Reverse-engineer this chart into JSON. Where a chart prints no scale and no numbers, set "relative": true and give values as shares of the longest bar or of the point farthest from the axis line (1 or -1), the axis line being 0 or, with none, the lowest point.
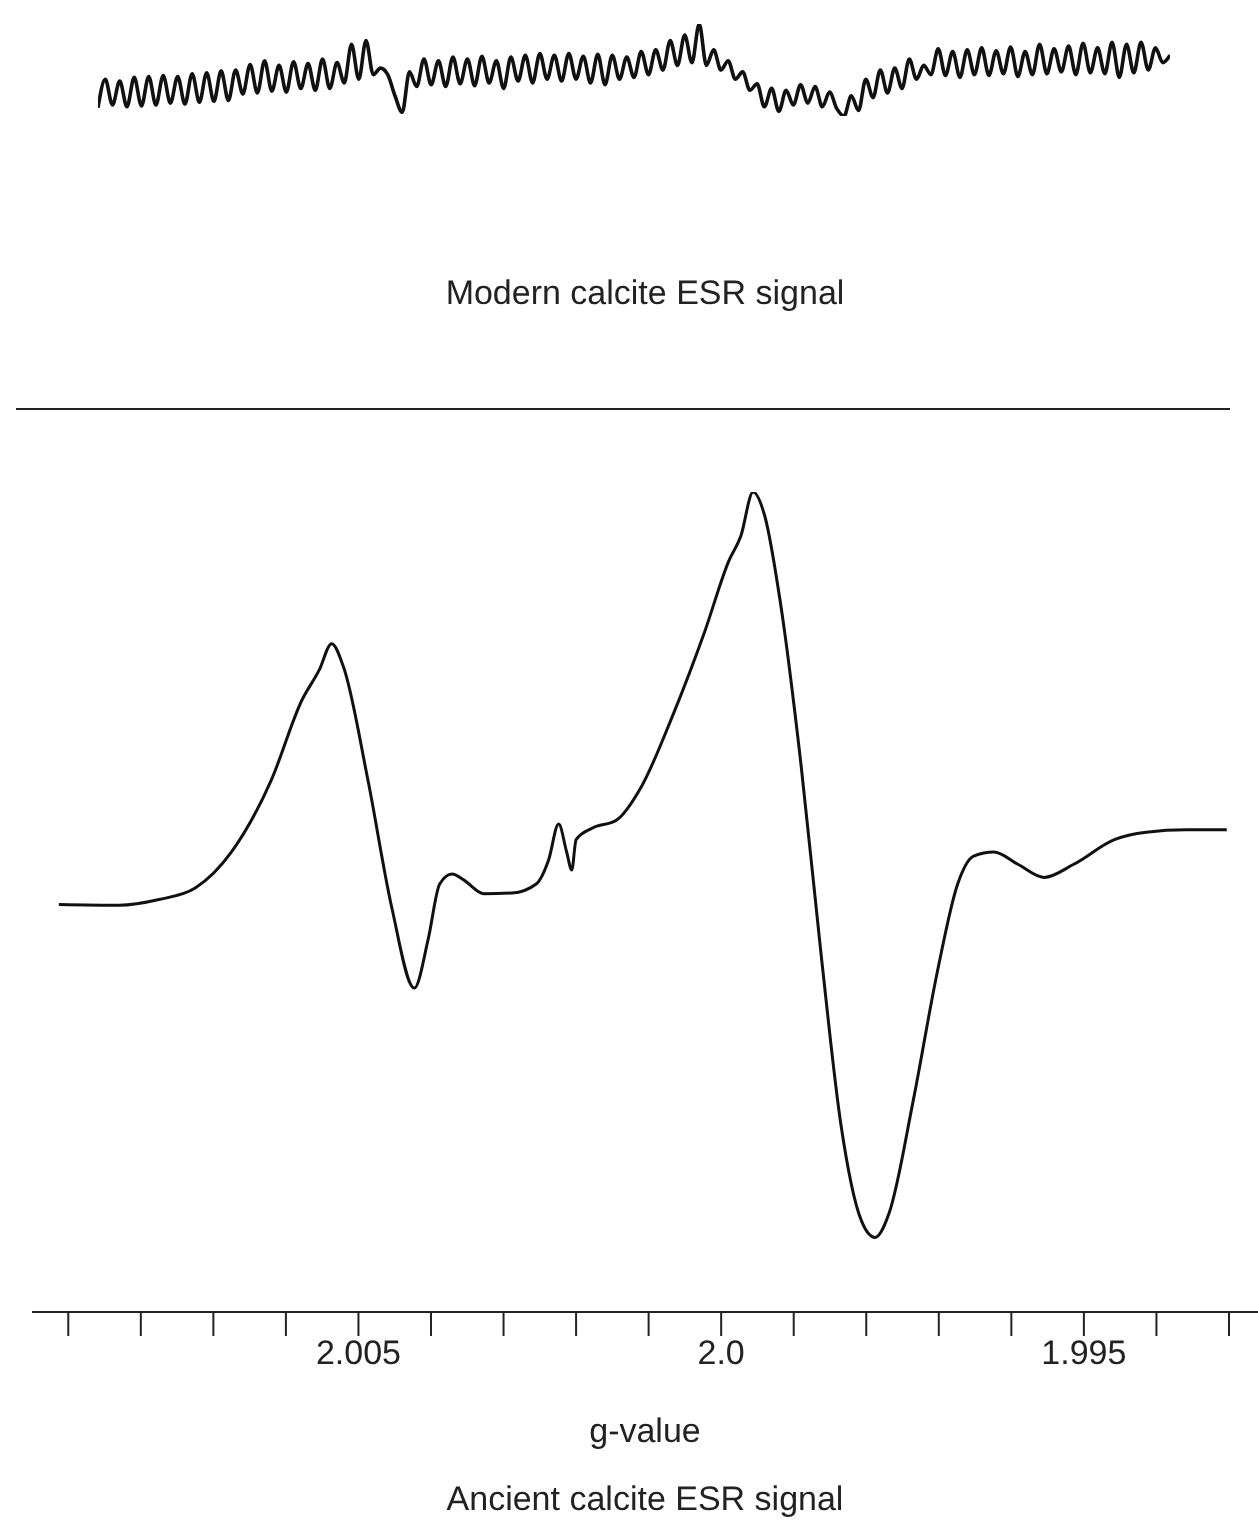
{
  "chart_data": [
    {
      "type": "line",
      "title": "Modern calcite ESR signal",
      "relative": true,
      "categories": [
        null,
        null,
        null,
        null,
        null,
        null,
        null,
        null,
        null,
        null,
        null,
        null,
        null,
        null,
        null,
        null,
        null,
        null,
        null,
        null,
        null,
        null,
        null,
        null,
        null,
        null,
        null,
        null,
        null,
        null,
        null,
        null,
        null,
        null,
        null,
        null,
        null,
        null,
        null,
        null,
        null,
        null,
        null,
        null,
        null,
        null,
        null,
        null,
        null,
        null,
        null,
        null,
        null,
        null,
        null,
        null,
        null,
        null,
        null,
        null,
        null,
        null,
        null,
        null,
        null,
        null,
        null,
        null,
        null,
        null,
        null,
        null,
        null,
        null,
        null,
        null,
        null,
        null,
        null,
        null,
        null,
        null,
        null,
        null,
        null,
        null,
        null,
        null,
        null,
        null,
        null,
        null,
        null,
        null,
        null,
        null,
        null,
        null,
        null,
        null,
        null,
        null,
        null,
        null,
        null,
        null,
        null,
        null,
        null,
        null,
        null,
        null,
        null,
        null,
        null,
        null,
        null,
        null,
        null,
        null,
        null,
        null,
        null,
        null,
        null,
        null,
        null,
        null,
        null,
        null,
        null,
        null,
        null,
        null,
        null,
        null,
        null,
        null,
        null,
        null,
        null,
        null,
        null,
        null,
        null,
        null,
        null,
        null,
        null
      ],
      "series": [
        {
          "color": "#111111",
          "values": [
            0.09,
            0.4,
            0.12,
            0.38,
            0.1,
            0.42,
            0.11,
            0.43,
            0.12,
            0.44,
            0.14,
            0.43,
            0.13,
            0.46,
            0.15,
            0.47,
            0.16,
            0.49,
            0.17,
            0.5,
            0.24,
            0.56,
            0.25,
            0.6,
            0.27,
            0.55,
            0.26,
            0.59,
            0.3,
            0.57,
            0.28,
            0.62,
            0.3,
            0.58,
            0.36,
            0.78,
            0.4,
            0.82,
            0.45,
            0.52,
            0.45,
            0.22,
            0.04,
            0.48,
            0.32,
            0.62,
            0.34,
            0.6,
            0.32,
            0.64,
            0.35,
            0.62,
            0.33,
            0.65,
            0.36,
            0.6,
            0.3,
            0.64,
            0.38,
            0.66,
            0.36,
            0.68,
            0.4,
            0.66,
            0.38,
            0.68,
            0.4,
            0.65,
            0.36,
            0.67,
            0.34,
            0.66,
            0.4,
            0.64,
            0.42,
            0.7,
            0.45,
            0.72,
            0.5,
            0.82,
            0.55,
            0.88,
            0.58,
            1.0,
            0.55,
            0.72,
            0.5,
            0.6,
            0.4,
            0.48,
            0.28,
            0.35,
            0.1,
            0.3,
            0.05,
            0.28,
            0.12,
            0.34,
            0.14,
            0.32,
            0.1,
            0.26,
            0.08,
            0.0,
            0.22,
            0.06,
            0.4,
            0.2,
            0.5,
            0.25,
            0.52,
            0.3,
            0.62,
            0.4,
            0.55,
            0.45,
            0.73,
            0.44,
            0.7,
            0.42,
            0.72,
            0.45,
            0.74,
            0.44,
            0.71,
            0.46,
            0.75,
            0.43,
            0.7,
            0.45,
            0.78,
            0.46,
            0.73,
            0.48,
            0.76,
            0.45,
            0.79,
            0.47,
            0.74,
            0.46,
            0.8,
            0.42,
            0.78,
            0.47,
            0.8,
            0.5,
            0.74,
            0.58,
            0.66
          ]
        }
      ]
    },
    {
      "type": "line",
      "title": "Ancient calcite ESR signal",
      "xlabel": "g-value",
      "relative": true,
      "xlim": [
        2.0095,
        1.9926
      ],
      "xticks": [
        {
          "value": 2.009,
          "label": null
        },
        {
          "value": 2.008,
          "label": null
        },
        {
          "value": 2.007,
          "label": null
        },
        {
          "value": 2.006,
          "label": null
        },
        2.005,
        {
          "value": 2.004,
          "label": null
        },
        {
          "value": 2.003,
          "label": null
        },
        {
          "value": 2.002,
          "label": null
        },
        {
          "value": 2.001,
          "label": null
        },
        {
          "value": 2.0,
          "label": "2.0"
        },
        {
          "value": 1.999,
          "label": null
        },
        {
          "value": 1.998,
          "label": null
        },
        {
          "value": 1.997,
          "label": null
        },
        {
          "value": 1.996,
          "label": null
        },
        1.995,
        {
          "value": 1.994,
          "label": null
        },
        {
          "value": 1.993,
          "label": null
        }
      ],
      "x": [
        2.00913,
        2.0083,
        2.00775,
        2.00725,
        2.00675,
        2.0062,
        2.00578,
        2.00554,
        2.00537,
        2.0052,
        2.00487,
        2.00454,
        2.00423,
        2.00404,
        2.00388,
        2.00371,
        2.00355,
        2.00327,
        2.00288,
        2.00255,
        2.00238,
        2.00224,
        2.00213,
        2.00206,
        2.002,
        2.00178,
        2.00144,
        2.00111,
        2.00067,
        2.00023,
        1.99989,
        1.99973,
        1.99956,
        1.9994,
        1.99918,
        1.9989,
        1.99862,
        1.99835,
        1.99807,
        1.99788,
        1.99768,
        1.99735,
        1.99702,
        1.99674,
        1.99652,
        1.99624,
        1.99591,
        1.99555,
        1.99514,
        1.99458,
        1.99414,
        1.99359,
        1.99303
      ],
      "series": [
        {
          "color": "#111111",
          "values": [
            0.497,
            0.496,
            0.503,
            0.517,
            0.561,
            0.649,
            0.746,
            0.783,
            0.815,
            0.785,
            0.649,
            0.493,
            0.395,
            0.454,
            0.522,
            0.534,
            0.527,
            0.51,
            0.511,
            0.522,
            0.551,
            0.595,
            0.561,
            0.539,
            0.576,
            0.59,
            0.6,
            0.639,
            0.727,
            0.829,
            0.917,
            0.946,
            1.0,
            0.971,
            0.863,
            0.668,
            0.434,
            0.229,
            0.112,
            0.091,
            0.122,
            0.259,
            0.415,
            0.522,
            0.556,
            0.561,
            0.546,
            0.53,
            0.546,
            0.576,
            0.585,
            0.588,
            0.588
          ]
        }
      ]
    }
  ]
}
